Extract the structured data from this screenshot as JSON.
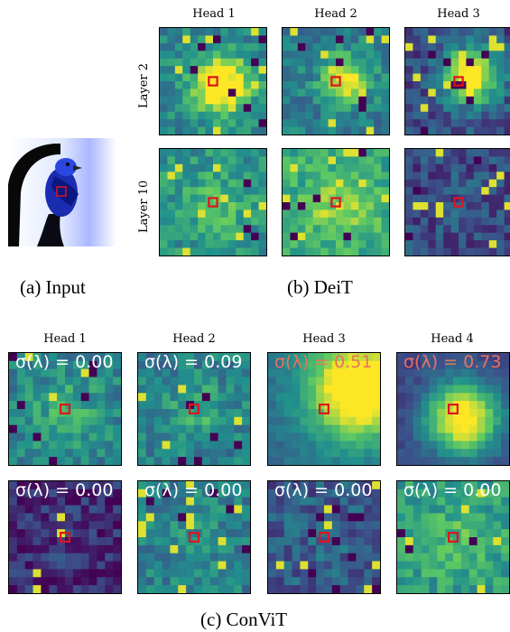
{
  "input_caption": "(a) Input",
  "deit": {
    "caption": "(b) DeiT",
    "heads": [
      "Head 1",
      "Head 2",
      "Head 3"
    ],
    "layers": [
      "Layer 2",
      "Layer 10"
    ]
  },
  "convit": {
    "caption": "(c) ConViT",
    "heads": [
      "Head 1",
      "Head 2",
      "Head 3",
      "Head 4"
    ],
    "sigma_row1": [
      "0.00",
      "0.09",
      "0.51",
      "0.73"
    ],
    "sigma_row2": [
      "0.00",
      "0.00",
      "0.00",
      "0.00"
    ],
    "sigma_prefix": "σ(λ) = ",
    "sigma_colors": {
      "white": "#ffffff",
      "red": "#e8735f"
    }
  },
  "colors": {
    "query_box": "#e0141c",
    "viridis_low": "#440154",
    "viridis_mid": "#21918c",
    "viridis_high": "#fde725"
  }
}
